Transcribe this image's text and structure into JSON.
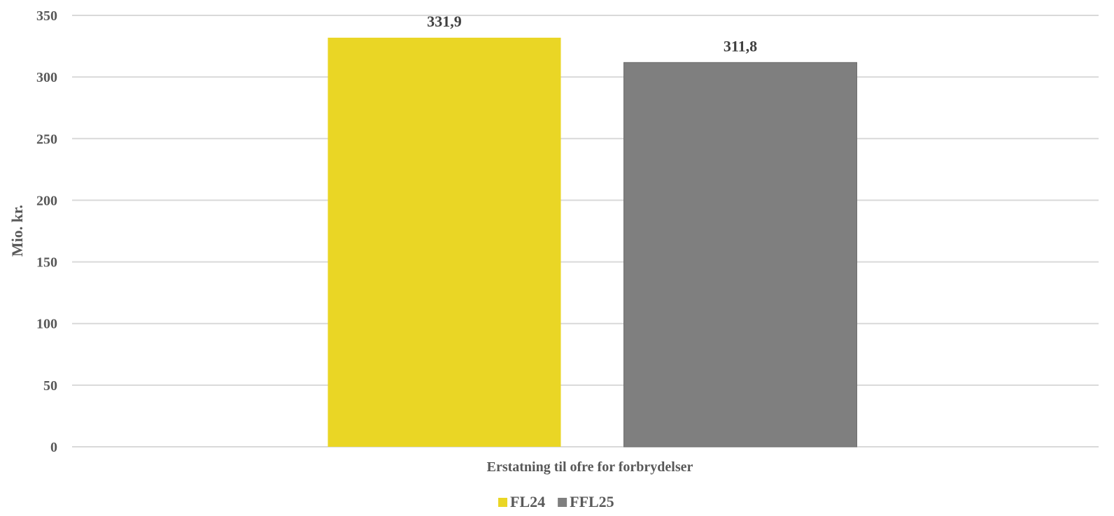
{
  "chart_data": {
    "type": "bar",
    "categories": [
      "Erstatning til ofre for forbrydelser"
    ],
    "series": [
      {
        "name": "FL24",
        "values": [
          331.9
        ],
        "label": "331,9",
        "color": "#EAD625"
      },
      {
        "name": "FFL25",
        "values": [
          311.8
        ],
        "label": "311,8",
        "color": "#7F7F7F"
      }
    ],
    "title": "",
    "xlabel": "",
    "ylabel": "Mio. kr.",
    "ylim": [
      0,
      350
    ],
    "yticks": [
      0,
      50,
      100,
      150,
      200,
      250,
      300,
      350
    ],
    "grid": true,
    "legend_position": "bottom"
  }
}
